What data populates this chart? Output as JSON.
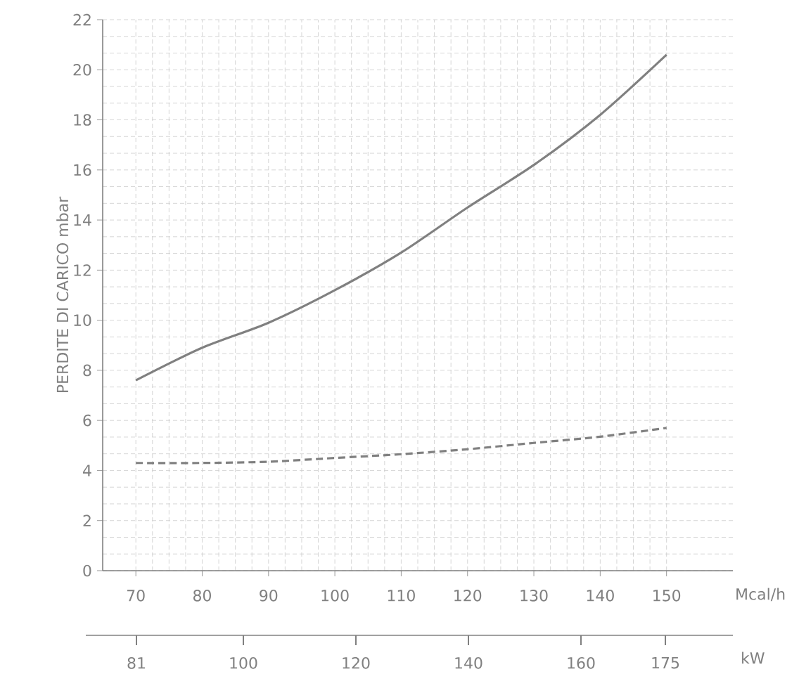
{
  "chart_data": {
    "type": "line",
    "ylabel": "PERDITE DI CARICO mbar",
    "xlabel": "Mcal/h",
    "x2label": "kW",
    "x": [
      70,
      80,
      90,
      100,
      110,
      120,
      130,
      140,
      150
    ],
    "series": [
      {
        "color": "#808080",
        "line_style": "solid",
        "values": [
          7.6,
          8.9,
          9.9,
          11.2,
          12.7,
          14.5,
          16.2,
          18.2,
          20.6
        ]
      },
      {
        "color": "#808080",
        "line_style": "dashed",
        "values": [
          4.3,
          4.3,
          4.35,
          4.5,
          4.65,
          4.85,
          5.1,
          5.35,
          5.7
        ]
      }
    ],
    "xlim": [
      65,
      160
    ],
    "xticks": [
      70,
      80,
      90,
      100,
      110,
      120,
      130,
      140,
      150
    ],
    "ylim": [
      0,
      22
    ],
    "yticks": [
      0,
      2,
      4,
      6,
      8,
      10,
      12,
      14,
      16,
      18,
      20,
      22
    ],
    "x2lim": [
      72,
      187
    ],
    "x2ticks": [
      81,
      100,
      120,
      140,
      160,
      175
    ],
    "grid": true,
    "marker": "none"
  }
}
